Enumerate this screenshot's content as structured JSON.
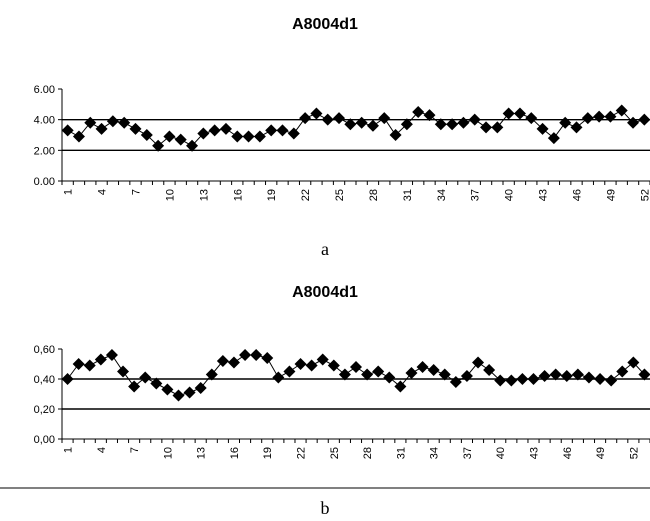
{
  "chart_data": [
    {
      "type": "line",
      "title": "A8004d1",
      "caption": "a",
      "xlabel": "",
      "ylabel": "",
      "ylim": [
        0,
        6
      ],
      "y_ticks": [
        "0.00",
        "2.00",
        "4.00",
        "6.00"
      ],
      "y_tick_values": [
        0,
        2,
        4,
        6
      ],
      "reference_lines": [
        2,
        4
      ],
      "x_tick_labels": [
        "1",
        "4",
        "7",
        "10",
        "13",
        "16",
        "19",
        "22",
        "25",
        "28",
        "31",
        "34",
        "37",
        "40",
        "43",
        "46",
        "49",
        "52"
      ],
      "marker": "diamond",
      "x": [
        1,
        2,
        3,
        4,
        5,
        6,
        7,
        8,
        9,
        10,
        11,
        12,
        13,
        14,
        15,
        16,
        17,
        18,
        19,
        20,
        21,
        22,
        23,
        24,
        25,
        26,
        27,
        28,
        29,
        30,
        31,
        32,
        33,
        34,
        35,
        36,
        37,
        38,
        39,
        40,
        41,
        42,
        43,
        44,
        45,
        46,
        47,
        48,
        49,
        50,
        51,
        52
      ],
      "values": [
        3.3,
        2.9,
        3.8,
        3.4,
        3.9,
        3.8,
        3.4,
        3.0,
        2.3,
        2.9,
        2.7,
        2.3,
        3.1,
        3.3,
        3.4,
        2.9,
        2.9,
        2.9,
        3.3,
        3.3,
        3.1,
        4.1,
        4.4,
        4.0,
        4.1,
        3.7,
        3.8,
        3.6,
        4.1,
        3.0,
        3.7,
        4.5,
        4.3,
        3.7,
        3.7,
        3.8,
        4.0,
        3.5,
        3.5,
        4.4,
        4.4,
        4.1,
        3.4,
        2.8,
        3.8,
        3.5,
        4.1,
        4.2,
        4.2,
        4.6,
        3.8,
        4.0
      ]
    },
    {
      "type": "line",
      "title": "A8004d1",
      "caption": "b",
      "xlabel": "",
      "ylabel": "",
      "ylim": [
        0,
        0.6
      ],
      "y_ticks": [
        "0,00",
        "0,20",
        "0,40",
        "0,60"
      ],
      "y_tick_values": [
        0,
        0.2,
        0.4,
        0.6
      ],
      "reference_lines": [
        0.2,
        0.4
      ],
      "x_tick_labels": [
        "1",
        "4",
        "7",
        "10",
        "13",
        "16",
        "19",
        "22",
        "25",
        "28",
        "31",
        "34",
        "37",
        "40",
        "43",
        "46",
        "49",
        "52"
      ],
      "marker": "diamond",
      "x": [
        1,
        2,
        3,
        4,
        5,
        6,
        7,
        8,
        9,
        10,
        11,
        12,
        13,
        14,
        15,
        16,
        17,
        18,
        19,
        20,
        21,
        22,
        23,
        24,
        25,
        26,
        27,
        28,
        29,
        30,
        31,
        32,
        33,
        34,
        35,
        36,
        37,
        38,
        39,
        40,
        41,
        42,
        43,
        44,
        45,
        46,
        47,
        48,
        49,
        50,
        51,
        52,
        53
      ],
      "values": [
        0.4,
        0.5,
        0.49,
        0.53,
        0.56,
        0.45,
        0.35,
        0.41,
        0.37,
        0.33,
        0.29,
        0.31,
        0.34,
        0.43,
        0.52,
        0.51,
        0.56,
        0.56,
        0.54,
        0.41,
        0.45,
        0.5,
        0.49,
        0.53,
        0.49,
        0.43,
        0.48,
        0.43,
        0.45,
        0.41,
        0.35,
        0.44,
        0.48,
        0.46,
        0.43,
        0.38,
        0.42,
        0.51,
        0.46,
        0.39,
        0.39,
        0.4,
        0.4,
        0.42,
        0.43,
        0.42,
        0.43,
        0.41,
        0.4,
        0.39,
        0.45,
        0.51,
        0.43
      ]
    }
  ]
}
